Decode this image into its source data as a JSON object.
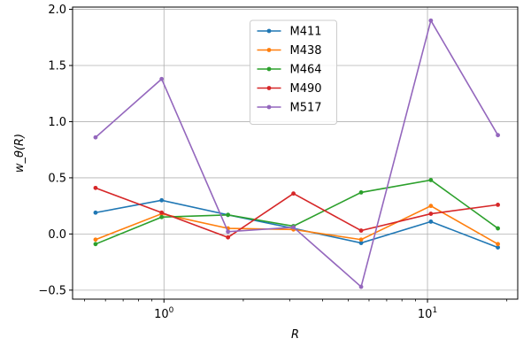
{
  "chart_data": {
    "type": "line",
    "title": "",
    "xlabel": "R",
    "ylabel": "w_θ(R)",
    "xscale": "log",
    "xlim": [
      0.45,
      22
    ],
    "ylim": [
      -0.58,
      2.02
    ],
    "grid": true,
    "legend_position": "top-center",
    "x": [
      0.55,
      0.98,
      1.75,
      3.1,
      5.6,
      10.3,
      18.5
    ],
    "x_ticks": [
      {
        "value": 1,
        "base": "10",
        "exp": "0"
      },
      {
        "value": 10,
        "base": "10",
        "exp": "1"
      }
    ],
    "y_ticks": [
      {
        "value": -0.5,
        "label": "−0.5"
      },
      {
        "value": 0.0,
        "label": "0.0"
      },
      {
        "value": 0.5,
        "label": "0.5"
      },
      {
        "value": 1.0,
        "label": "1.0"
      },
      {
        "value": 1.5,
        "label": "1.5"
      },
      {
        "value": 2.0,
        "label": "2.0"
      }
    ],
    "series": [
      {
        "name": "M411",
        "color": "#1f77b4",
        "values": [
          0.19,
          0.3,
          0.17,
          0.05,
          -0.08,
          0.11,
          -0.12
        ]
      },
      {
        "name": "M438",
        "color": "#ff7f0e",
        "values": [
          -0.05,
          0.18,
          0.05,
          0.04,
          -0.05,
          0.25,
          -0.09
        ]
      },
      {
        "name": "M464",
        "color": "#2ca02c",
        "values": [
          -0.09,
          0.15,
          0.17,
          0.07,
          0.37,
          0.48,
          0.05
        ]
      },
      {
        "name": "M490",
        "color": "#d62728",
        "values": [
          0.41,
          0.19,
          -0.03,
          0.36,
          0.03,
          0.18,
          0.26
        ]
      },
      {
        "name": "M517",
        "color": "#9467bd",
        "values": [
          0.86,
          1.38,
          0.02,
          0.06,
          -0.47,
          1.9,
          0.88
        ]
      }
    ]
  }
}
